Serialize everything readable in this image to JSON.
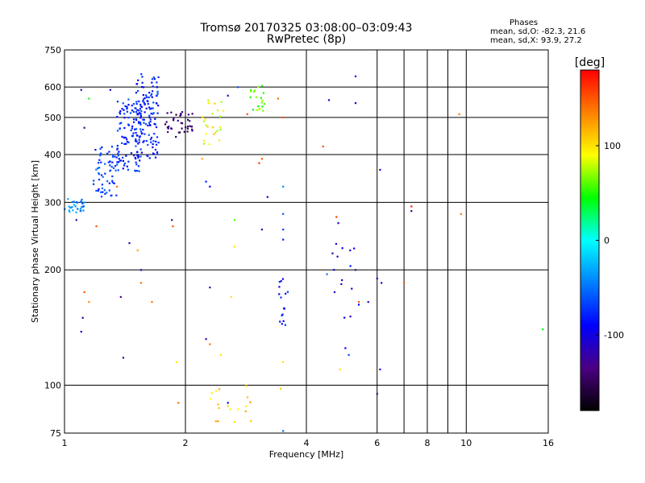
{
  "chart_data": {
    "type": "scatter",
    "title": "Tromsø 20170325 03:08:00–03:09:43",
    "subtitle": "RwPretec (8p)",
    "stats": {
      "heading": "Phases",
      "line1": "mean, sd,O:  -82.3, 21.6",
      "line2": "mean, sd,X:  93.9, 27.2"
    },
    "xlabel": "Frequency [MHz]",
    "ylabel": "Stationary phase Virtual Height [km]",
    "x_scale": "log",
    "y_scale": "log",
    "xlim": [
      1,
      16
    ],
    "ylim": [
      75,
      750
    ],
    "x_ticks": [
      1,
      2,
      4,
      6,
      8,
      10,
      16
    ],
    "x_minor_ticks": [
      7,
      9
    ],
    "y_ticks": [
      75,
      100,
      200,
      300,
      400,
      500,
      600,
      750
    ],
    "grid": true,
    "colorbar": {
      "label": "[deg]",
      "range": [
        -180,
        180
      ],
      "ticks": [
        100,
        0,
        -100
      ],
      "colors": [
        "#000000",
        "#4b0082",
        "#0000ff",
        "#0080ff",
        "#00ffff",
        "#00ff00",
        "#ffff00",
        "#ff8000",
        "#ff0000"
      ]
    },
    "clusters": [
      {
        "x": [
          1.0,
          1.12
        ],
        "y": [
          280,
          310
        ],
        "phase": -40,
        "n": 30
      },
      {
        "x": [
          1.18,
          1.35
        ],
        "y": [
          310,
          420
        ],
        "phase": -70,
        "n": 60
      },
      {
        "x": [
          1.35,
          1.55
        ],
        "y": [
          360,
          560
        ],
        "phase": -75,
        "n": 110
      },
      {
        "x": [
          1.5,
          1.72
        ],
        "y": [
          390,
          650
        ],
        "phase": -80,
        "n": 130
      },
      {
        "x": [
          1.78,
          2.1
        ],
        "y": [
          440,
          520
        ],
        "phase": -140,
        "n": 40
      },
      {
        "x": [
          2.2,
          2.5
        ],
        "y": [
          420,
          560
        ],
        "phase": 90,
        "n": 25
      },
      {
        "x": [
          2.9,
          3.15
        ],
        "y": [
          520,
          610
        ],
        "phase": 60,
        "n": 20
      },
      {
        "x": [
          2.3,
          2.95
        ],
        "y": [
          80,
          100
        ],
        "phase": 110,
        "n": 18
      },
      {
        "x": [
          3.4,
          3.6
        ],
        "y": [
          140,
          190
        ],
        "phase": -90,
        "n": 16
      },
      {
        "x": [
          4.6,
          5.4
        ],
        "y": [
          150,
          240
        ],
        "phase": -100,
        "n": 14
      }
    ],
    "points": [
      {
        "x": 1.1,
        "y": 590,
        "phase": -120
      },
      {
        "x": 1.15,
        "y": 560,
        "phase": 50
      },
      {
        "x": 1.3,
        "y": 590,
        "phase": -110
      },
      {
        "x": 1.12,
        "y": 470,
        "phase": -130
      },
      {
        "x": 1.2,
        "y": 260,
        "phase": 150
      },
      {
        "x": 1.35,
        "y": 330,
        "phase": 140
      },
      {
        "x": 1.07,
        "y": 270,
        "phase": -120
      },
      {
        "x": 1.45,
        "y": 235,
        "phase": -120
      },
      {
        "x": 1.55,
        "y": 200,
        "phase": -110
      },
      {
        "x": 1.52,
        "y": 225,
        "phase": 120
      },
      {
        "x": 1.55,
        "y": 185,
        "phase": 140
      },
      {
        "x": 1.12,
        "y": 175,
        "phase": 150
      },
      {
        "x": 1.15,
        "y": 165,
        "phase": 130
      },
      {
        "x": 1.38,
        "y": 170,
        "phase": -130
      },
      {
        "x": 1.11,
        "y": 150,
        "phase": -120
      },
      {
        "x": 1.1,
        "y": 138,
        "phase": -110
      },
      {
        "x": 1.4,
        "y": 118,
        "phase": -120
      },
      {
        "x": 1.65,
        "y": 165,
        "phase": 140
      },
      {
        "x": 1.85,
        "y": 270,
        "phase": -130
      },
      {
        "x": 1.86,
        "y": 260,
        "phase": 150
      },
      {
        "x": 1.9,
        "y": 115,
        "phase": 100
      },
      {
        "x": 1.92,
        "y": 90,
        "phase": 140
      },
      {
        "x": 2.25,
        "y": 340,
        "phase": -80
      },
      {
        "x": 2.3,
        "y": 330,
        "phase": -90
      },
      {
        "x": 2.2,
        "y": 390,
        "phase": 120
      },
      {
        "x": 2.3,
        "y": 180,
        "phase": -120
      },
      {
        "x": 2.6,
        "y": 170,
        "phase": 100
      },
      {
        "x": 2.25,
        "y": 132,
        "phase": -130
      },
      {
        "x": 2.3,
        "y": 128,
        "phase": 140
      },
      {
        "x": 2.45,
        "y": 120,
        "phase": 100
      },
      {
        "x": 2.55,
        "y": 90,
        "phase": -90
      },
      {
        "x": 2.65,
        "y": 270,
        "phase": 60
      },
      {
        "x": 2.65,
        "y": 230,
        "phase": 100
      },
      {
        "x": 2.7,
        "y": 600,
        "phase": -60
      },
      {
        "x": 2.55,
        "y": 570,
        "phase": -120
      },
      {
        "x": 2.85,
        "y": 510,
        "phase": 150
      },
      {
        "x": 3.1,
        "y": 390,
        "phase": 150
      },
      {
        "x": 3.05,
        "y": 380,
        "phase": 160
      },
      {
        "x": 3.1,
        "y": 255,
        "phase": -120
      },
      {
        "x": 3.2,
        "y": 310,
        "phase": -110
      },
      {
        "x": 3.4,
        "y": 560,
        "phase": 140
      },
      {
        "x": 3.5,
        "y": 500,
        "phase": 150
      },
      {
        "x": 3.5,
        "y": 330,
        "phase": -40
      },
      {
        "x": 3.5,
        "y": 280,
        "phase": -60
      },
      {
        "x": 3.5,
        "y": 255,
        "phase": -70
      },
      {
        "x": 3.5,
        "y": 240,
        "phase": -80
      },
      {
        "x": 3.5,
        "y": 115,
        "phase": 100
      },
      {
        "x": 3.45,
        "y": 98,
        "phase": 110
      },
      {
        "x": 3.5,
        "y": 76,
        "phase": -50
      },
      {
        "x": 4.4,
        "y": 420,
        "phase": 150
      },
      {
        "x": 4.55,
        "y": 555,
        "phase": -120
      },
      {
        "x": 4.75,
        "y": 275,
        "phase": 160
      },
      {
        "x": 4.8,
        "y": 265,
        "phase": -110
      },
      {
        "x": 4.5,
        "y": 195,
        "phase": -50
      },
      {
        "x": 4.7,
        "y": 175,
        "phase": -110
      },
      {
        "x": 4.85,
        "y": 110,
        "phase": 100
      },
      {
        "x": 5.0,
        "y": 125,
        "phase": -90
      },
      {
        "x": 5.1,
        "y": 120,
        "phase": -60
      },
      {
        "x": 5.3,
        "y": 640,
        "phase": -100
      },
      {
        "x": 5.3,
        "y": 545,
        "phase": -110
      },
      {
        "x": 5.3,
        "y": 200,
        "phase": -130
      },
      {
        "x": 5.4,
        "y": 165,
        "phase": 150
      },
      {
        "x": 5.7,
        "y": 165,
        "phase": -120
      },
      {
        "x": 6.0,
        "y": 190,
        "phase": -110
      },
      {
        "x": 6.1,
        "y": 365,
        "phase": -100
      },
      {
        "x": 6.1,
        "y": 110,
        "phase": -100
      },
      {
        "x": 6.0,
        "y": 95,
        "phase": -130
      },
      {
        "x": 6.15,
        "y": 185,
        "phase": -110
      },
      {
        "x": 7.0,
        "y": 185,
        "phase": 150
      },
      {
        "x": 7.3,
        "y": 293,
        "phase": 170
      },
      {
        "x": 7.3,
        "y": 285,
        "phase": -140
      },
      {
        "x": 9.6,
        "y": 510,
        "phase": 140
      },
      {
        "x": 9.7,
        "y": 280,
        "phase": 140
      },
      {
        "x": 15.5,
        "y": 140,
        "phase": 40
      }
    ]
  }
}
